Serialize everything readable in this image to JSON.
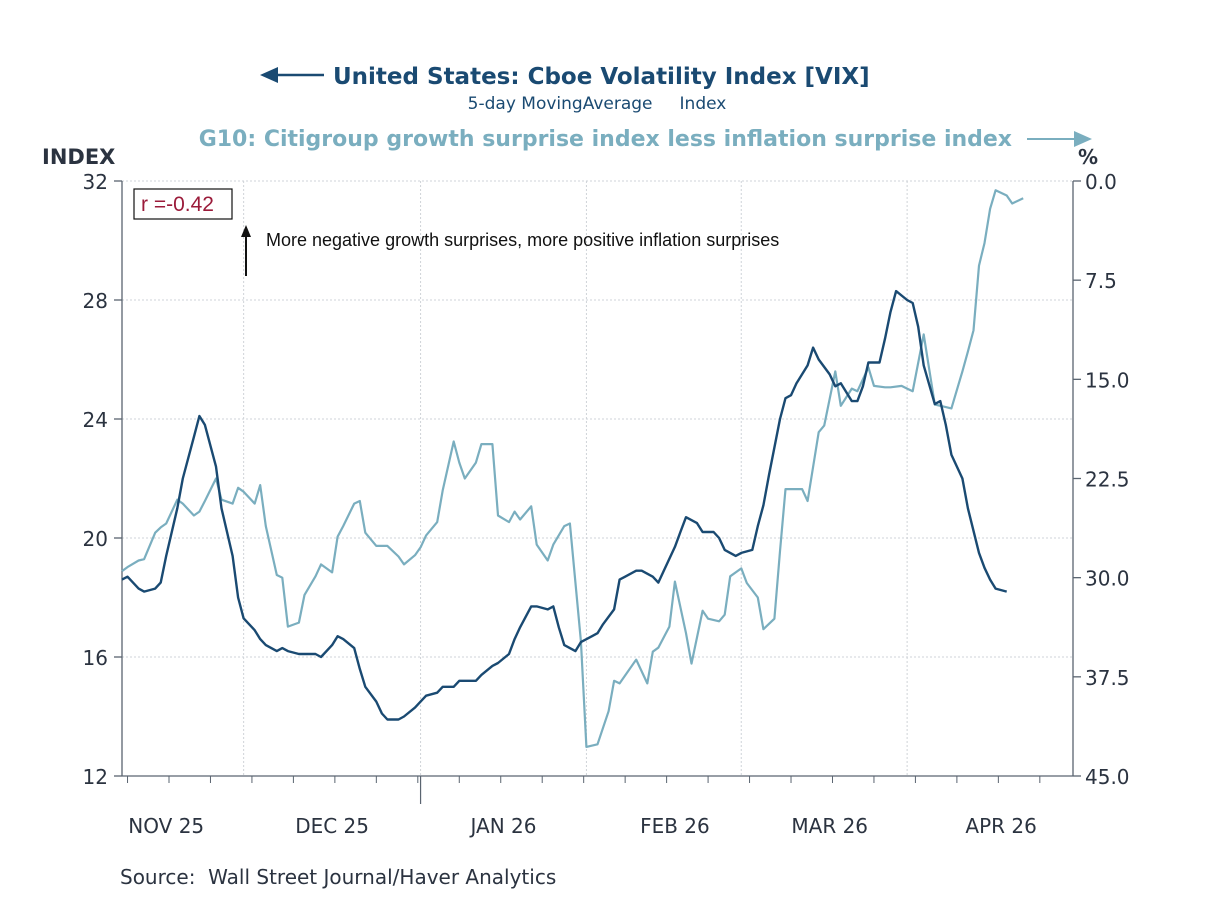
{
  "chart_data": {
    "type": "line",
    "title_left_series": "United States: Cboe Volatility Index [VIX]",
    "subtitle_left_series": "5-day MovingAverage     Index",
    "title_right_series": "G10: Citigroup growth surprise index less inflation surprise index",
    "left_axis_label": "INDEX",
    "right_axis_label": "%",
    "left_ylim": [
      12,
      32
    ],
    "left_ticks": [
      "32",
      "28",
      "24",
      "20",
      "16",
      "12"
    ],
    "left_tick_values": [
      32,
      28,
      24,
      20,
      16,
      12
    ],
    "right_ylim": [
      0,
      45
    ],
    "right_inverted": true,
    "right_ticks": [
      "0.0",
      "7.5",
      "15.0",
      "22.5",
      "30.0",
      "37.5",
      "45.0"
    ],
    "right_tick_values": [
      0,
      7.5,
      15,
      22.5,
      30,
      37.5,
      45
    ],
    "x_axis": {
      "start": "2025-10-09",
      "end": "2026-04-30",
      "unit": "days since start",
      "month_labels": [
        "NOV 25",
        "DEC 25",
        "JAN 26",
        "FEB 26",
        "MAR 26",
        "APR 26"
      ],
      "month_label_days": [
        8,
        38,
        69,
        100,
        128,
        159
      ],
      "month_boundary_days": [
        22,
        54,
        84,
        112,
        142
      ],
      "minor_tick_days": [
        1,
        22,
        43,
        64,
        85,
        106,
        127,
        148,
        169,
        190,
        43,
        106,
        127
      ],
      "x_max_day": 172
    },
    "annotation_corr": "r =-0.42",
    "annotation_text": "More negative growth surprises, more positive inflation surprises",
    "grid": true,
    "source": "Source:  Wall Street Journal/Haver Analytics",
    "colors": {
      "vix": "#1a4a72",
      "g10": "#7aaebf",
      "corr": "#9b1b3a",
      "axis": "#5a6470"
    },
    "series": [
      {
        "name": "United States: Cboe Volatility Index [VIX] (5-day moving average, Index)",
        "axis": "left",
        "points": [
          [
            0,
            18.6
          ],
          [
            1,
            18.7
          ],
          [
            3,
            18.3
          ],
          [
            4,
            18.2
          ],
          [
            6,
            18.3
          ],
          [
            7,
            18.5
          ],
          [
            8,
            19.4
          ],
          [
            10,
            21.0
          ],
          [
            11,
            22.0
          ],
          [
            13,
            23.4
          ],
          [
            14,
            24.1
          ],
          [
            15,
            23.8
          ],
          [
            17,
            22.4
          ],
          [
            18,
            21.0
          ],
          [
            20,
            19.4
          ],
          [
            21,
            18.0
          ],
          [
            22,
            17.3
          ],
          [
            24,
            16.9
          ],
          [
            25,
            16.6
          ],
          [
            26,
            16.4
          ],
          [
            28,
            16.2
          ],
          [
            29,
            16.3
          ],
          [
            30,
            16.2
          ],
          [
            32,
            16.1
          ],
          [
            33,
            16.1
          ],
          [
            35,
            16.1
          ],
          [
            36,
            16.0
          ],
          [
            38,
            16.4
          ],
          [
            39,
            16.7
          ],
          [
            40,
            16.6
          ],
          [
            42,
            16.3
          ],
          [
            43,
            15.6
          ],
          [
            44,
            15.0
          ],
          [
            46,
            14.5
          ],
          [
            47,
            14.1
          ],
          [
            48,
            13.9
          ],
          [
            50,
            13.9
          ],
          [
            51,
            14.0
          ],
          [
            53,
            14.3
          ],
          [
            54,
            14.5
          ],
          [
            55,
            14.7
          ],
          [
            57,
            14.8
          ],
          [
            58,
            15.0
          ],
          [
            60,
            15.0
          ],
          [
            61,
            15.2
          ],
          [
            62,
            15.2
          ],
          [
            64,
            15.2
          ],
          [
            65,
            15.4
          ],
          [
            67,
            15.7
          ],
          [
            68,
            15.8
          ],
          [
            70,
            16.1
          ],
          [
            71,
            16.6
          ],
          [
            72,
            17.0
          ],
          [
            74,
            17.7
          ],
          [
            75,
            17.7
          ],
          [
            77,
            17.6
          ],
          [
            78,
            17.7
          ],
          [
            79,
            17.0
          ],
          [
            80,
            16.4
          ],
          [
            82,
            16.2
          ],
          [
            83,
            16.5
          ],
          [
            85,
            16.7
          ],
          [
            86,
            16.8
          ],
          [
            87,
            17.1
          ],
          [
            89,
            17.6
          ],
          [
            90,
            18.6
          ],
          [
            91,
            18.7
          ],
          [
            93,
            18.9
          ],
          [
            94,
            18.9
          ],
          [
            96,
            18.7
          ],
          [
            97,
            18.5
          ],
          [
            98,
            18.9
          ],
          [
            100,
            19.7
          ],
          [
            101,
            20.2
          ],
          [
            102,
            20.7
          ],
          [
            104,
            20.5
          ],
          [
            105,
            20.2
          ],
          [
            107,
            20.2
          ],
          [
            108,
            20.0
          ],
          [
            109,
            19.6
          ],
          [
            111,
            19.4
          ],
          [
            112,
            19.5
          ],
          [
            114,
            19.6
          ],
          [
            115,
            20.4
          ],
          [
            116,
            21.1
          ],
          [
            117,
            22.1
          ],
          [
            119,
            24.0
          ],
          [
            120,
            24.7
          ],
          [
            121,
            24.8
          ],
          [
            122,
            25.2
          ],
          [
            124,
            25.8
          ],
          [
            125,
            26.4
          ],
          [
            126,
            26.0
          ],
          [
            128,
            25.5
          ],
          [
            129,
            25.1
          ],
          [
            130,
            25.2
          ],
          [
            132,
            24.6
          ],
          [
            133,
            24.6
          ],
          [
            134,
            25.1
          ],
          [
            135,
            25.9
          ],
          [
            137,
            25.9
          ],
          [
            138,
            26.7
          ],
          [
            139,
            27.6
          ],
          [
            140,
            28.3
          ],
          [
            142,
            28.0
          ],
          [
            143,
            27.9
          ],
          [
            144,
            27.1
          ],
          [
            145,
            25.8
          ],
          [
            147,
            24.5
          ],
          [
            148,
            24.6
          ],
          [
            149,
            23.8
          ],
          [
            150,
            22.8
          ],
          [
            152,
            22.0
          ],
          [
            153,
            21.0
          ],
          [
            155,
            19.5
          ],
          [
            156,
            19.0
          ],
          [
            157,
            18.6
          ],
          [
            158,
            18.3
          ],
          [
            160,
            18.2
          ]
        ]
      },
      {
        "name": "G10: Citigroup growth surprise index less inflation surprise index (%)",
        "axis": "right",
        "points": [
          [
            0,
            29.5
          ],
          [
            1,
            29.2
          ],
          [
            3,
            28.7
          ],
          [
            4,
            28.6
          ],
          [
            6,
            26.6
          ],
          [
            7,
            26.2
          ],
          [
            8,
            25.9
          ],
          [
            10,
            24.1
          ],
          [
            11,
            24.4
          ],
          [
            13,
            25.3
          ],
          [
            14,
            25.0
          ],
          [
            15,
            24.2
          ],
          [
            17,
            22.5
          ],
          [
            18,
            24.1
          ],
          [
            20,
            24.4
          ],
          [
            21,
            23.2
          ],
          [
            22,
            23.5
          ],
          [
            24,
            24.4
          ],
          [
            25,
            23.0
          ],
          [
            26,
            26.1
          ],
          [
            28,
            29.8
          ],
          [
            29,
            30.0
          ],
          [
            30,
            33.7
          ],
          [
            32,
            33.4
          ],
          [
            33,
            31.3
          ],
          [
            35,
            29.9
          ],
          [
            36,
            29.0
          ],
          [
            38,
            29.6
          ],
          [
            39,
            26.9
          ],
          [
            40,
            26.1
          ],
          [
            42,
            24.4
          ],
          [
            43,
            24.2
          ],
          [
            44,
            26.6
          ],
          [
            46,
            27.6
          ],
          [
            47,
            27.6
          ],
          [
            48,
            27.6
          ],
          [
            50,
            28.4
          ],
          [
            51,
            29.0
          ],
          [
            53,
            28.3
          ],
          [
            54,
            27.7
          ],
          [
            55,
            26.8
          ],
          [
            57,
            25.8
          ],
          [
            58,
            23.4
          ],
          [
            60,
            19.7
          ],
          [
            61,
            21.3
          ],
          [
            62,
            22.5
          ],
          [
            64,
            21.3
          ],
          [
            65,
            19.9
          ],
          [
            67,
            19.9
          ],
          [
            68,
            25.3
          ],
          [
            70,
            25.8
          ],
          [
            71,
            25.0
          ],
          [
            72,
            25.6
          ],
          [
            74,
            24.6
          ],
          [
            75,
            27.5
          ],
          [
            77,
            28.7
          ],
          [
            78,
            27.5
          ],
          [
            80,
            26.1
          ],
          [
            81,
            25.9
          ],
          [
            83,
            34.8
          ],
          [
            84,
            42.8
          ],
          [
            86,
            42.6
          ],
          [
            88,
            40.1
          ],
          [
            89,
            37.8
          ],
          [
            90,
            38.0
          ],
          [
            91,
            37.4
          ],
          [
            93,
            36.2
          ],
          [
            95,
            38.0
          ],
          [
            96,
            35.6
          ],
          [
            97,
            35.3
          ],
          [
            99,
            33.7
          ],
          [
            100,
            30.3
          ],
          [
            102,
            34.2
          ],
          [
            103,
            36.5
          ],
          [
            105,
            32.5
          ],
          [
            106,
            33.1
          ],
          [
            108,
            33.3
          ],
          [
            109,
            32.8
          ],
          [
            110,
            29.9
          ],
          [
            112,
            29.3
          ],
          [
            113,
            30.4
          ],
          [
            115,
            31.5
          ],
          [
            116,
            33.9
          ],
          [
            118,
            33.1
          ],
          [
            119,
            28.0
          ],
          [
            120,
            23.3
          ],
          [
            121,
            23.3
          ],
          [
            123,
            23.3
          ],
          [
            124,
            24.2
          ],
          [
            126,
            19.0
          ],
          [
            127,
            18.5
          ],
          [
            129,
            14.4
          ],
          [
            130,
            17.0
          ],
          [
            132,
            15.7
          ],
          [
            133,
            15.9
          ],
          [
            135,
            14.1
          ],
          [
            136,
            15.5
          ],
          [
            138,
            15.6
          ],
          [
            139,
            15.6
          ],
          [
            141,
            15.5
          ],
          [
            142,
            15.7
          ],
          [
            143,
            15.9
          ],
          [
            145,
            11.6
          ],
          [
            147,
            16.9
          ],
          [
            148,
            17.0
          ],
          [
            149,
            17.1
          ],
          [
            150,
            17.2
          ],
          [
            152,
            14.4
          ],
          [
            153,
            12.9
          ],
          [
            154,
            11.3
          ],
          [
            155,
            6.4
          ],
          [
            156,
            4.7
          ],
          [
            157,
            2.1
          ],
          [
            158,
            0.7
          ],
          [
            160,
            1.1
          ],
          [
            161,
            1.7
          ],
          [
            163,
            1.3
          ]
        ]
      }
    ]
  }
}
